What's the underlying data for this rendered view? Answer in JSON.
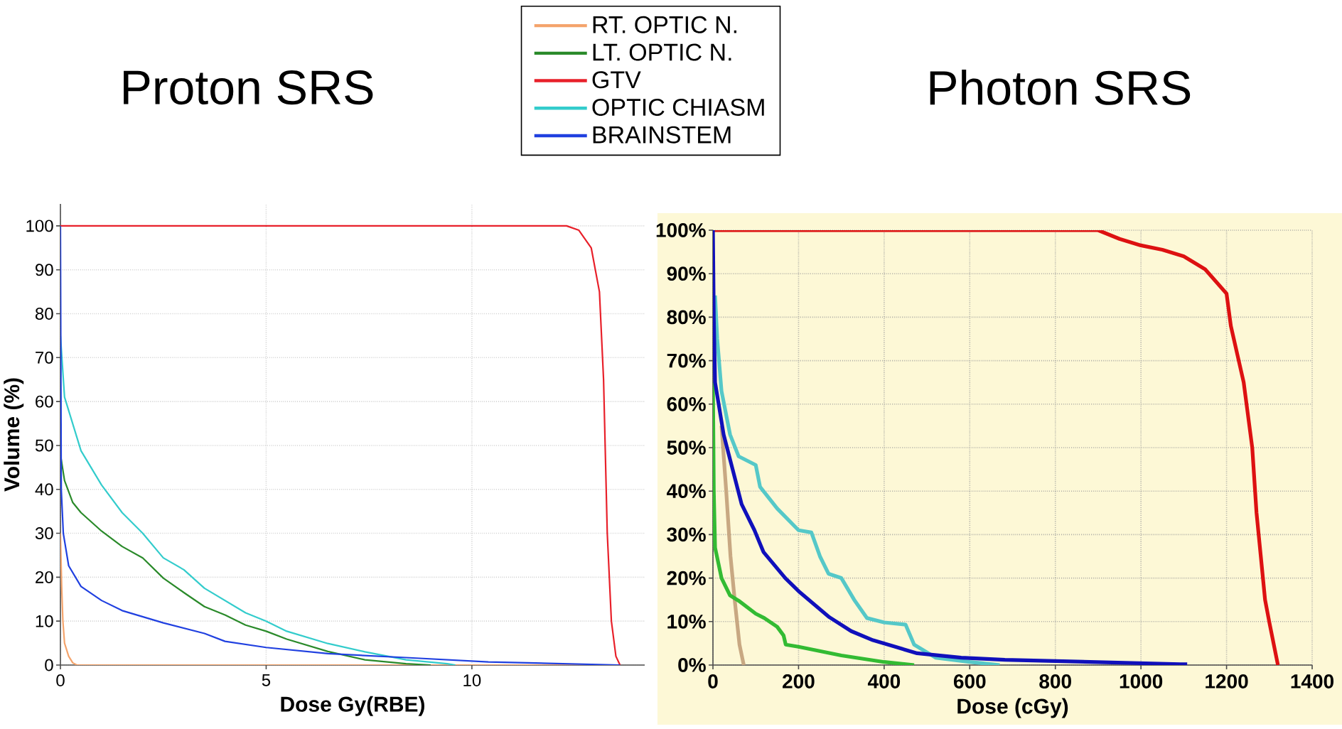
{
  "chart_data": [
    {
      "type": "line",
      "title": "Proton SRS",
      "xlabel": "Dose Gy(RBE)",
      "ylabel": "Volume (%)",
      "xlim": [
        0,
        14.2
      ],
      "ylim": [
        0,
        105
      ],
      "xticks": [
        0,
        5,
        10
      ],
      "yticks": [
        0,
        10,
        20,
        30,
        40,
        50,
        60,
        70,
        80,
        90,
        100
      ],
      "grid": true,
      "legend": "top",
      "series": [
        {
          "name": "RT. OPTIC N.",
          "color": "#f4a46c",
          "x": [
            0,
            0.03,
            0.06,
            0.1,
            0.2,
            0.3,
            0.4,
            13.6
          ],
          "values": [
            30,
            18,
            10,
            5,
            2,
            0.5,
            0,
            0
          ]
        },
        {
          "name": "LT. OPTIC N.",
          "color": "#2a8a2a",
          "x": [
            0,
            0.1,
            0.3,
            0.5,
            1.0,
            1.5,
            2.0,
            2.5,
            3.0,
            3.5,
            4.0,
            4.5,
            5.0,
            5.5,
            6.5,
            7.4,
            8.4,
            9.0
          ],
          "values": [
            48,
            42,
            37,
            34.7,
            30.5,
            27,
            24.4,
            19.8,
            16.5,
            13.3,
            11.4,
            9.1,
            7.7,
            5.9,
            3.1,
            1.2,
            0.3,
            0
          ]
        },
        {
          "name": "GTV",
          "color": "#e8202a",
          "x": [
            0,
            12.3,
            12.6,
            12.9,
            13.1,
            13.2,
            13.29,
            13.39,
            13.5,
            13.6
          ],
          "values": [
            100,
            100,
            99,
            95,
            85,
            65,
            30,
            10,
            2,
            0
          ]
        },
        {
          "name": "OPTIC CHIASM",
          "color": "#33cccc",
          "x": [
            0,
            0.1,
            0.5,
            1.0,
            1.5,
            2.0,
            2.5,
            3.0,
            3.5,
            4.0,
            4.5,
            5.0,
            5.5,
            6.5,
            7.4,
            8.4,
            9.4,
            9.6
          ],
          "values": [
            75,
            61,
            48.8,
            41,
            34.7,
            30,
            24.4,
            21.7,
            17.5,
            14.7,
            11.9,
            10,
            7.7,
            4.9,
            3,
            1.2,
            0.3,
            0
          ]
        },
        {
          "name": "BRAINSTEM",
          "color": "#2040e0",
          "x": [
            0,
            0.02,
            0.07,
            0.2,
            0.5,
            1.0,
            1.5,
            2.5,
            3.5,
            4.0,
            5.0,
            6.5,
            8.4,
            10.4,
            13.6
          ],
          "values": [
            100,
            40,
            30,
            22.6,
            17.9,
            14.7,
            12.4,
            9.6,
            7.2,
            5.4,
            4.0,
            2.6,
            1.7,
            0.7,
            0
          ]
        }
      ]
    },
    {
      "type": "line",
      "title": "Photon SRS",
      "xlabel": "Dose (cGy)",
      "xlim": [
        0,
        1400
      ],
      "ylim": [
        0,
        100
      ],
      "xticks": [
        0,
        200,
        400,
        600,
        800,
        1000,
        1200,
        1400
      ],
      "yticks": [
        {
          "value": 0,
          "label": "0%"
        },
        {
          "value": 10,
          "label": "10%"
        },
        {
          "value": 20,
          "label": "20%"
        },
        {
          "value": 30,
          "label": "30%"
        },
        {
          "value": 40,
          "label": "40%"
        },
        {
          "value": 50,
          "label": "50%"
        },
        {
          "value": 60,
          "label": "60%"
        },
        {
          "value": 70,
          "label": "70%"
        },
        {
          "value": 80,
          "label": "80%"
        },
        {
          "value": 90,
          "label": "90%"
        },
        {
          "value": 100,
          "label": "100%"
        }
      ],
      "grid": true,
      "series": [
        {
          "color": "#c8a882",
          "x": [
            20,
            31,
            41,
            51,
            62,
            72
          ],
          "values": [
            55,
            40,
            25,
            14.8,
            4.7,
            0
          ]
        },
        {
          "color": "#33bb33",
          "x": [
            0,
            2,
            5,
            20,
            40,
            60,
            100,
            120,
            150,
            165,
            170,
            200,
            300,
            400,
            470
          ],
          "values": [
            65,
            40,
            27,
            20,
            16,
            14.8,
            11.8,
            10.8,
            8.8,
            6.8,
            4.7,
            4.2,
            2.2,
            0.7,
            0
          ]
        },
        {
          "color": "#dd1111",
          "x": [
            0,
            900,
            950,
            1000,
            1050,
            1100,
            1150,
            1200,
            1210,
            1240,
            1260,
            1270,
            1290,
            1300,
            1320
          ],
          "values": [
            100,
            100,
            98,
            96.5,
            95.5,
            94,
            91,
            85.4,
            78,
            65,
            50,
            35,
            15,
            9.8,
            0
          ]
        },
        {
          "color": "#55c8c8",
          "x": [
            5,
            10,
            20,
            40,
            60,
            100,
            110,
            150,
            200,
            230,
            250,
            270,
            300,
            330,
            360,
            400,
            450,
            470,
            520,
            600,
            670
          ],
          "values": [
            85,
            75,
            63,
            53,
            48,
            46,
            41,
            36,
            31,
            30.5,
            25,
            21,
            20,
            15,
            10.8,
            9.8,
            9.3,
            4.7,
            1.7,
            0.7,
            0
          ]
        },
        {
          "color": "#1010bb",
          "x": [
            0,
            2,
            5,
            25,
            46,
            67,
            97,
            118,
            169,
            200,
            272,
            323,
            374,
            426,
            477,
            580,
            682,
            887,
            1092,
            1108
          ],
          "values": [
            100,
            80,
            65,
            53,
            45,
            37,
            31,
            26,
            20,
            17,
            11,
            7.8,
            5.7,
            4.2,
            2.7,
            1.7,
            1.2,
            0.7,
            0.2,
            0.2
          ]
        }
      ]
    }
  ]
}
